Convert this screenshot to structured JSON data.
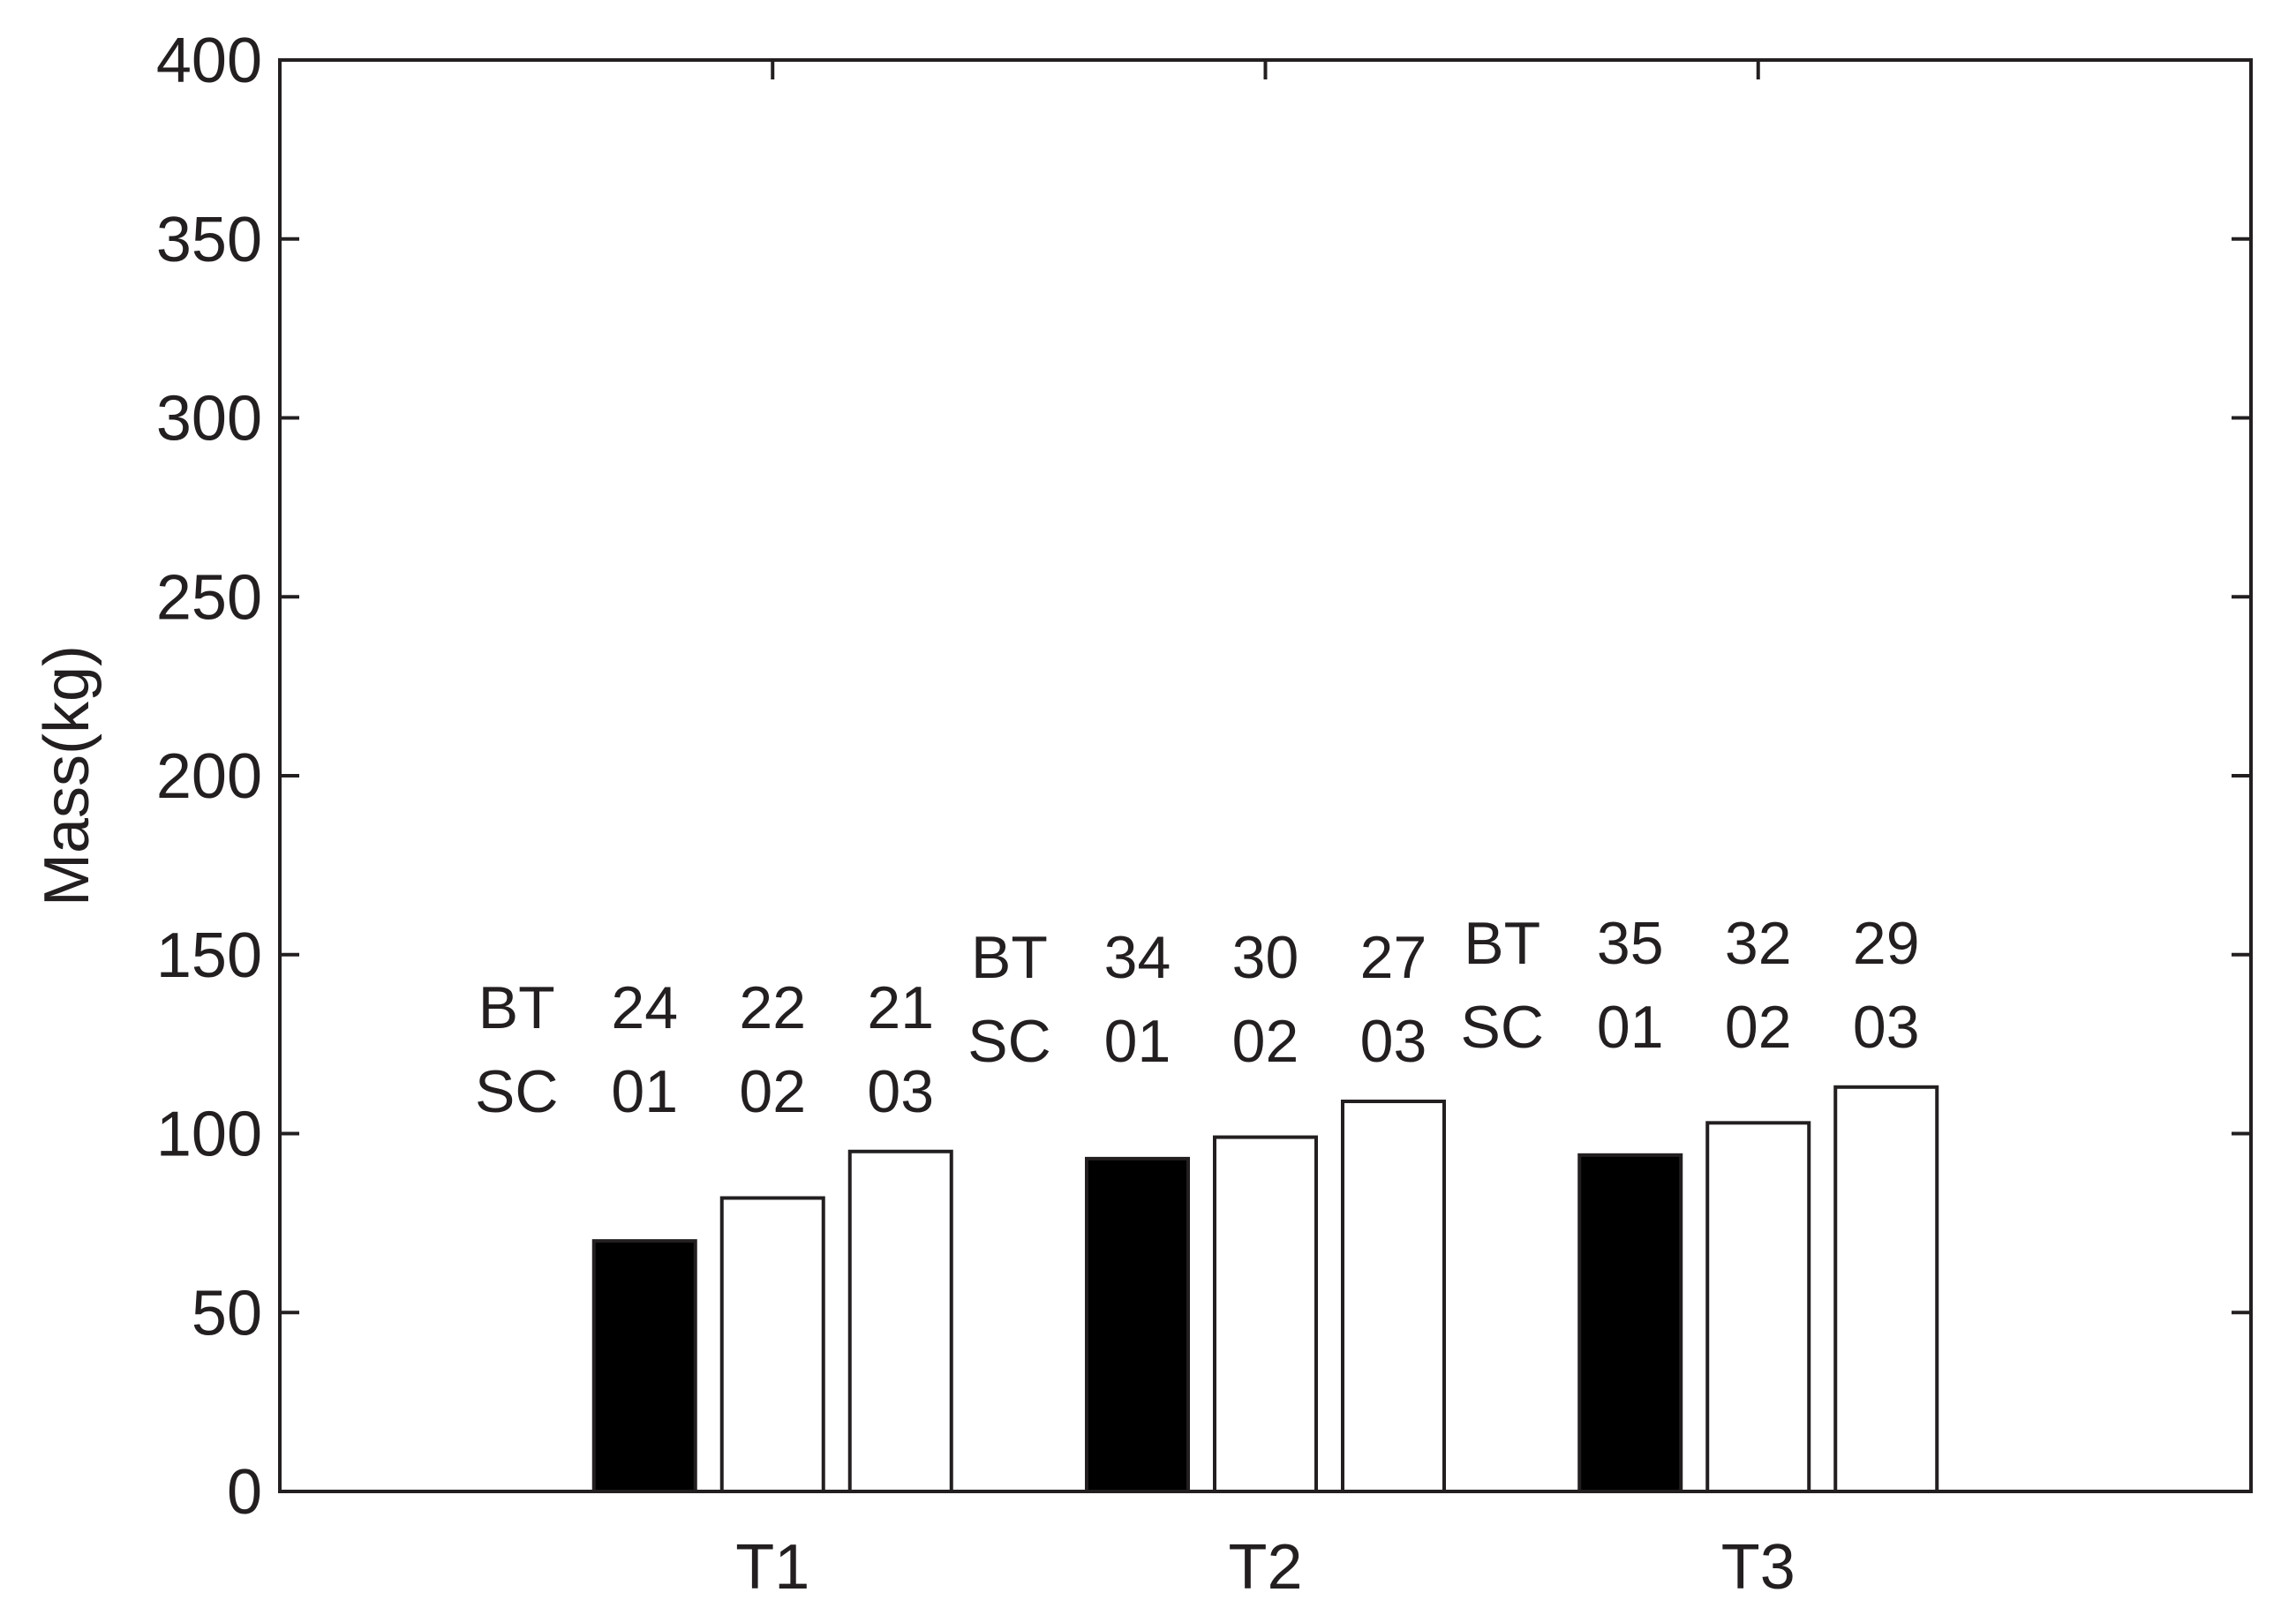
{
  "chart_data": {
    "type": "bar",
    "title": "",
    "xlabel": "",
    "ylabel": "Mass(kg)",
    "ylim": [
      0,
      400
    ],
    "yticks": [
      0,
      50,
      100,
      150,
      200,
      250,
      300,
      350,
      400
    ],
    "grid": false,
    "categories": [
      "T1",
      "T2",
      "T3"
    ],
    "series": [
      {
        "values": [
          70,
          93,
          94
        ],
        "fill": "#000000"
      },
      {
        "values": [
          82,
          99,
          103
        ],
        "fill": "#ffffff"
      },
      {
        "values": [
          95,
          109,
          113
        ],
        "fill": "#ffffff"
      }
    ],
    "annotations": [
      {
        "category": "T1",
        "row1_prefix": "BT",
        "row2_prefix": "SC",
        "row1": [
          "24",
          "22",
          "21"
        ],
        "row2": [
          "01",
          "02",
          "03"
        ]
      },
      {
        "category": "T2",
        "row1_prefix": "BT",
        "row2_prefix": "SC",
        "row1": [
          "34",
          "30",
          "27"
        ],
        "row2": [
          "01",
          "02",
          "03"
        ]
      },
      {
        "category": "T3",
        "row1_prefix": "BT",
        "row2_prefix": "SC",
        "row1": [
          "35",
          "32",
          "29"
        ],
        "row2": [
          "01",
          "02",
          "03"
        ]
      }
    ],
    "colors": {
      "axis": "#231f20",
      "bar_dark": "#000000",
      "bar_light": "#ffffff"
    }
  }
}
